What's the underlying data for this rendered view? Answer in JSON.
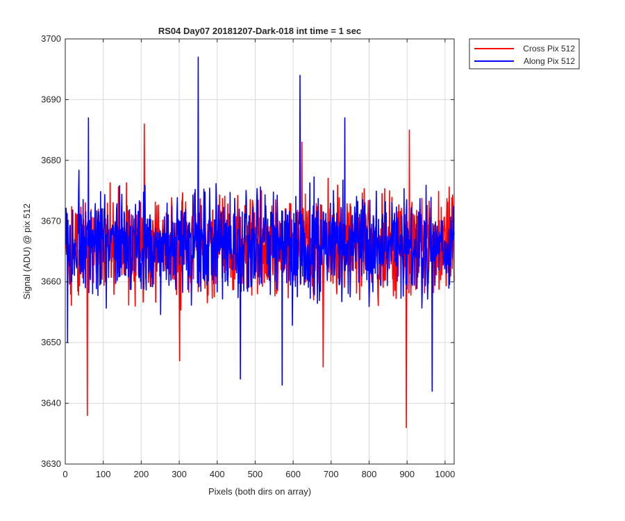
{
  "chart_data": {
    "type": "line",
    "title": "RS04 Day07 20181207-Dark-018 int time = 1 sec",
    "xlabel": "Pixels (both dirs on array)",
    "ylabel": "Signal (ADU) @ pix 512",
    "xlim": [
      0,
      1024
    ],
    "ylim": [
      3630,
      3700
    ],
    "xticks": [
      0,
      100,
      200,
      300,
      400,
      500,
      600,
      700,
      800,
      900,
      1000
    ],
    "yticks": [
      3630,
      3640,
      3650,
      3660,
      3670,
      3680,
      3690,
      3700
    ],
    "grid": true,
    "legend_position": "outside top-right",
    "noise_mean": 3666,
    "noise_amplitude": 9,
    "series": [
      {
        "name": "Cross Pix 512",
        "color": "#ff0000",
        "extremes": [
          {
            "x": 57,
            "y": 3638
          },
          {
            "x": 897,
            "y": 3636
          },
          {
            "x": 207,
            "y": 3686
          },
          {
            "x": 622,
            "y": 3683
          },
          {
            "x": 905,
            "y": 3685
          },
          {
            "x": 678,
            "y": 3646
          },
          {
            "x": 300,
            "y": 3647
          }
        ]
      },
      {
        "name": "Along Pix 512",
        "color": "#0000ff",
        "extremes": [
          {
            "x": 349,
            "y": 3697
          },
          {
            "x": 617,
            "y": 3694
          },
          {
            "x": 60,
            "y": 3687
          },
          {
            "x": 735,
            "y": 3687
          },
          {
            "x": 570,
            "y": 3643
          },
          {
            "x": 460,
            "y": 3644
          },
          {
            "x": 965,
            "y": 3642
          },
          {
            "x": 5,
            "y": 3650
          }
        ]
      }
    ]
  }
}
